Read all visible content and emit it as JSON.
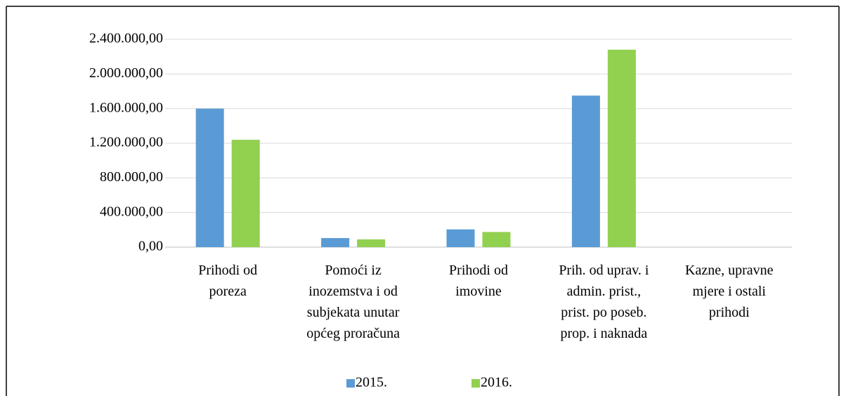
{
  "chart_data": {
    "type": "bar",
    "categories": [
      "Prihodi od\nporeza",
      "Pomoći iz\ninozemstva i od\nsubjekata unutar\nopćeg proračuna",
      "Prihodi od\nimovine",
      "Prih. od uprav. i\nadmin. prist.,\nprist. po poseb.\nprop. i naknada",
      "Kazne, upravne\nmjere i ostali\nprihodi"
    ],
    "series": [
      {
        "name": "2015.",
        "color": "#5b9bd5",
        "values": [
          1600000,
          105000,
          205000,
          1750000,
          0
        ]
      },
      {
        "name": "2016.",
        "color": "#92d050",
        "values": [
          1240000,
          90000,
          175000,
          2280000,
          0
        ]
      }
    ],
    "ylim": [
      0,
      2400000
    ],
    "yticks": [
      {
        "value": 0,
        "label": "0,00"
      },
      {
        "value": 400000,
        "label": "400.000,00"
      },
      {
        "value": 800000,
        "label": "800.000,00"
      },
      {
        "value": 1200000,
        "label": "1.200.000,00"
      },
      {
        "value": 1600000,
        "label": "1.600.000,00"
      },
      {
        "value": 2000000,
        "label": "2.000.000,00"
      },
      {
        "value": 2400000,
        "label": "2.400.000,00"
      }
    ],
    "grid": true,
    "legend": "bottom"
  }
}
